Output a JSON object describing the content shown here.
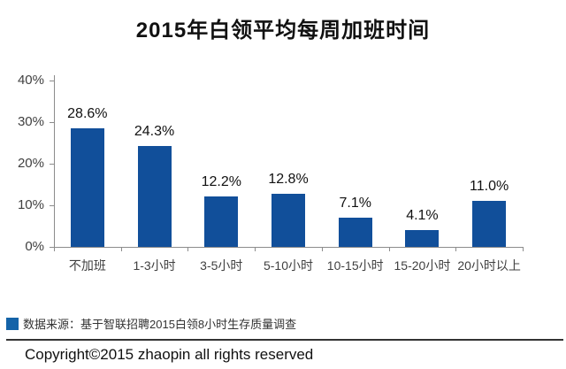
{
  "title": "2015年白领平均每周加班时间",
  "chart_data": {
    "type": "bar",
    "title": "2015年白领平均每周加班时间",
    "categories": [
      "不加班",
      "1-3小时",
      "3-5小时",
      "5-10小时",
      "10-15小时",
      "15-20小时",
      "20小时以上"
    ],
    "values": [
      28.6,
      24.3,
      12.2,
      12.8,
      7.1,
      4.1,
      11.0
    ],
    "value_labels": [
      "28.6%",
      "24.3%",
      "12.2%",
      "12.8%",
      "7.1%",
      "4.1%",
      "11.0%"
    ],
    "yticks": [
      "0%",
      "10%",
      "20%",
      "30%",
      "40%"
    ],
    "ytick_values": [
      0,
      10,
      20,
      30,
      40
    ],
    "ylim": [
      0,
      40
    ],
    "xlabel": "",
    "ylabel": "",
    "grid": false,
    "legend_position": "none",
    "bar_color": "#114F9A",
    "axis_color": "#8C8C8C"
  },
  "source_note": {
    "marker_color": "#1463A8",
    "text": "数据来源：基于智联招聘2015白领8小时生存质量调查"
  },
  "footer": {
    "copyright": "Copyright©2015 zhaopin all rights reserved"
  }
}
